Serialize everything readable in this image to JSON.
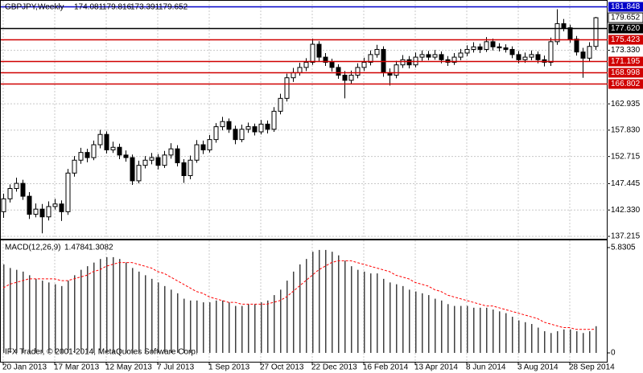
{
  "chart_data": [
    {
      "type": "candlestick",
      "title": "GBPJPY,Weekly",
      "categories": [
        "20 Jan 2013",
        null,
        null,
        null,
        null,
        null,
        null,
        null,
        "17 Mar 2013",
        null,
        null,
        null,
        null,
        null,
        null,
        null,
        "12 May 2013",
        null,
        null,
        null,
        null,
        null,
        null,
        null,
        "7 Jul 2013",
        null,
        null,
        null,
        null,
        null,
        null,
        null,
        "1 Sep 2013",
        null,
        null,
        null,
        null,
        null,
        null,
        null,
        "27 Oct 2013",
        null,
        null,
        null,
        null,
        null,
        null,
        null,
        "22 Dec 2013",
        null,
        null,
        null,
        null,
        null,
        null,
        null,
        "16 Feb 2014",
        null,
        null,
        null,
        null,
        null,
        null,
        null,
        "13 Apr 2014",
        null,
        null,
        null,
        null,
        null,
        null,
        null,
        "8 Jun 2014",
        null,
        null,
        null,
        null,
        null,
        null,
        null,
        "3 Aug 2014",
        null,
        null,
        null,
        null,
        null,
        null,
        null,
        "28 Sep 2014",
        null,
        null,
        null,
        null
      ],
      "open": [
        142.0,
        144.5,
        146.5,
        147.5,
        145.0,
        141.5,
        142.5,
        141.0,
        143.0,
        143.5,
        142.0,
        149.5,
        152.0,
        153.5,
        152.5,
        155.0,
        157.0,
        154.0,
        154.5,
        153.0,
        152.5,
        148.0,
        151.0,
        152.0,
        152.5,
        151.0,
        153.0,
        154.2,
        151.5,
        149.0,
        152.0,
        155.0,
        154.0,
        156.0,
        158.5,
        159.5,
        158.0,
        156.0,
        158.0,
        158.5,
        157.5,
        159.0,
        158.0,
        161.5,
        164.0,
        168.0,
        169.0,
        170.0,
        171.0,
        174.5,
        172.0,
        171.0,
        170.0,
        168.5,
        167.5,
        168.5,
        170.0,
        171.0,
        172.5,
        173.5,
        169.0,
        168.5,
        170.5,
        171.5,
        170.5,
        172.0,
        172.5,
        172.0,
        172.5,
        171.5,
        171.0,
        172.0,
        172.8,
        173.5,
        174.0,
        173.5,
        175.0,
        174.0,
        173.8,
        173.5,
        172.5,
        171.5,
        172.0,
        172.5,
        171.5,
        171.0,
        175.0,
        178.5,
        177.7,
        175.5,
        173.0,
        171.8,
        174.081
      ],
      "high": [
        145.5,
        147.3,
        148.6,
        148.2,
        145.8,
        143.6,
        143.5,
        144,
        144.5,
        144.2,
        150.3,
        152.8,
        154.4,
        154.2,
        155.8,
        157.9,
        157.6,
        155.6,
        155.2,
        153.9,
        153.1,
        151.9,
        152.8,
        153.4,
        153.2,
        153.8,
        155.3,
        154.9,
        152.2,
        152.9,
        155.9,
        155.8,
        156.9,
        159.2,
        160.4,
        160.1,
        158.7,
        158.9,
        159.3,
        159.1,
        159.8,
        159.7,
        162.3,
        164.9,
        168.8,
        169.9,
        170.9,
        171.8,
        175.6,
        175.1,
        172.8,
        171.7,
        170.6,
        169.3,
        169.4,
        170.8,
        171.9,
        173.3,
        174.4,
        174.1,
        169.8,
        171.3,
        172.4,
        172.2,
        172.9,
        173.3,
        173.2,
        173.4,
        173.1,
        172.2,
        172.8,
        173.6,
        174.3,
        174.9,
        174.6,
        175.9,
        175.6,
        174.7,
        174.5,
        174.1,
        173.2,
        172.9,
        173.3,
        173.1,
        172.3,
        175.8,
        181.3,
        179.4,
        178.3,
        176.1,
        173.8,
        174.9,
        179.816
      ],
      "low": [
        140.8,
        143.8,
        145.9,
        144.3,
        140.6,
        140.9,
        137.8,
        140.3,
        142.4,
        140.2,
        141.4,
        148.8,
        151.3,
        151.6,
        152,
        154.3,
        153.3,
        153.4,
        152.2,
        151.7,
        147.2,
        147.5,
        150.4,
        151.2,
        150.2,
        150.5,
        152.3,
        150.8,
        147.6,
        148.3,
        151.5,
        153.2,
        153.5,
        155.4,
        157.8,
        157.3,
        155.1,
        155.5,
        157.3,
        156.8,
        157,
        157.2,
        157.5,
        160.9,
        163.4,
        167.2,
        168.4,
        169.3,
        170.5,
        171.2,
        170.3,
        169.2,
        167.8,
        164.0,
        166.8,
        167.9,
        169.3,
        170.4,
        171.9,
        168.2,
        166.5,
        167.9,
        169.9,
        169.8,
        170,
        171.3,
        171.4,
        171.5,
        170.8,
        170.3,
        170.5,
        171.4,
        172.2,
        172.9,
        172.8,
        173,
        173.3,
        173.1,
        172.9,
        171.8,
        170.8,
        170.9,
        171.4,
        170.8,
        170.2,
        170.3,
        174.4,
        177,
        174.8,
        172.3,
        168.0,
        171.2,
        173.391
      ],
      "close": [
        144.5,
        146.5,
        147.5,
        145.0,
        141.5,
        142.5,
        141.0,
        143.0,
        143.5,
        142.0,
        149.5,
        152.0,
        153.5,
        152.5,
        155.0,
        157.0,
        154.0,
        154.5,
        153.0,
        152.5,
        148.0,
        151.0,
        152.0,
        152.5,
        151.0,
        153.0,
        154.2,
        151.5,
        149.0,
        152.0,
        155.0,
        154.0,
        156.0,
        158.5,
        159.5,
        158.0,
        156.0,
        158.0,
        158.5,
        157.5,
        159.0,
        158.0,
        161.5,
        164.0,
        168.0,
        169.0,
        170.0,
        171.0,
        174.5,
        172.0,
        171.0,
        170.0,
        168.5,
        167.5,
        168.5,
        170.0,
        171.0,
        172.5,
        173.5,
        169.0,
        168.5,
        170.5,
        171.5,
        170.5,
        172.0,
        172.5,
        172.0,
        172.5,
        171.5,
        171.0,
        172.0,
        172.8,
        173.5,
        174.0,
        173.5,
        175.0,
        174.0,
        173.8,
        173.5,
        172.5,
        171.5,
        172.0,
        172.5,
        171.5,
        171.0,
        175.0,
        178.5,
        177.7,
        175.5,
        173.0,
        171.8,
        174.081,
        179.652
      ],
      "up_color": "#ffffff",
      "down_color": "#000000",
      "ylim": [
        136.75,
        182.78
      ],
      "yticks": [
        {
          "value": 173.33,
          "label": "173.330"
        },
        162.935,
        {
          "value": 157.83,
          "label": "157.830"
        },
        152.715,
        147.445,
        {
          "value": 142.33,
          "label": "142.330"
        },
        137.215
      ],
      "levels": [
        {
          "value": 181.848,
          "color": "#0000c8"
        },
        {
          "value": 177.62,
          "label": "177.620",
          "color": "#000000"
        },
        {
          "value": 175.423,
          "color": "#d00000"
        },
        {
          "value": 171.195,
          "color": "#d00000"
        },
        {
          "value": 168.998,
          "color": "#d00000"
        },
        {
          "value": 166.802,
          "color": "#d00000"
        }
      ],
      "grid": true
    },
    {
      "type": "macd",
      "title": "MACD(12,26,9)",
      "series": [
        {
          "color": "#404040",
          "values": [
            4.9,
            4.7,
            4.6,
            4.5,
            4.3,
            4.1,
            4.0,
            3.9,
            3.8,
            3.7,
            4.0,
            4.3,
            4.6,
            4.8,
            5.0,
            5.2,
            5.3,
            5.3,
            5.2,
            5.0,
            4.7,
            4.5,
            4.3,
            4.1,
            3.9,
            3.7,
            3.5,
            3.3,
            3.0,
            2.9,
            2.9,
            2.8,
            2.8,
            2.9,
            2.9,
            2.8,
            2.6,
            2.6,
            2.7,
            2.7,
            2.8,
            2.9,
            3.2,
            3.5,
            4.0,
            4.5,
            4.9,
            5.2,
            5.6,
            5.7,
            5.7,
            5.6,
            5.4,
            5.1,
            4.8,
            4.6,
            4.5,
            4.4,
            4.4,
            4.1,
            3.9,
            3.8,
            3.7,
            3.5,
            3.4,
            3.3,
            3.2,
            3.0,
            2.9,
            2.7,
            2.6,
            2.6,
            2.6,
            2.5,
            2.5,
            2.5,
            2.4,
            2.3,
            2.2,
            2.0,
            1.8,
            1.7,
            1.6,
            1.4,
            1.2,
            1.1,
            1.2,
            1.3,
            1.3,
            1.2,
            1.1,
            1.2,
            1.4784
          ]
        },
        {
          "color": "#ff0000",
          "values": [
            3.6,
            3.8,
            3.9,
            4.0,
            4.1,
            4.1,
            4.1,
            4.1,
            4.1,
            4.0,
            4.0,
            4.1,
            4.2,
            4.3,
            4.5,
            4.6,
            4.8,
            4.9,
            5.0,
            5.0,
            5.0,
            4.9,
            4.8,
            4.7,
            4.5,
            4.4,
            4.2,
            4.0,
            3.8,
            3.6,
            3.4,
            3.3,
            3.1,
            3.0,
            2.9,
            2.8,
            2.8,
            2.7,
            2.7,
            2.7,
            2.7,
            2.7,
            2.8,
            2.9,
            3.1,
            3.4,
            3.7,
            4.0,
            4.3,
            4.6,
            4.8,
            5.0,
            5.1,
            5.1,
            5.1,
            5.0,
            4.9,
            4.8,
            4.7,
            4.6,
            4.5,
            4.3,
            4.2,
            4.1,
            3.9,
            3.8,
            3.7,
            3.5,
            3.4,
            3.2,
            3.1,
            3.0,
            2.9,
            2.8,
            2.7,
            2.6,
            2.6,
            2.5,
            2.4,
            2.3,
            2.2,
            2.1,
            2.0,
            1.9,
            1.7,
            1.6,
            1.5,
            1.4,
            1.4,
            1.3,
            1.3,
            1.3,
            1.3082
          ]
        }
      ],
      "ylim": [
        -0.49,
        6.23
      ],
      "yticks": [
        5.8305,
        0
      ],
      "footer": "IFX Trader, © 2001-2014, MetaQuotes Software Corp."
    }
  ]
}
